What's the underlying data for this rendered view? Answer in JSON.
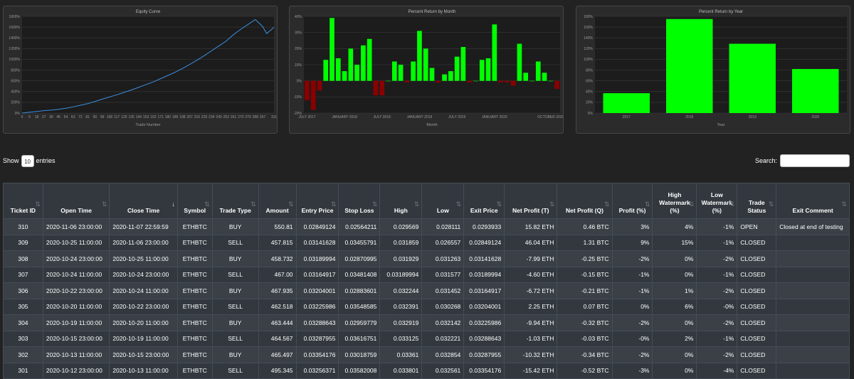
{
  "chart_data": [
    {
      "type": "line",
      "title": "Equity Curve",
      "xlabel": "Trade Number",
      "ylabel": "",
      "x_ticks": [
        "0",
        "9",
        "18",
        "27",
        "36",
        "45",
        "54",
        "63",
        "72",
        "81",
        "90",
        "99",
        "108",
        "117",
        "126",
        "135",
        "144",
        "153",
        "162",
        "171",
        "180",
        "189",
        "198",
        "207",
        "216",
        "225",
        "234",
        "243",
        "252",
        "261",
        "270",
        "279",
        "288",
        "297",
        "311"
      ],
      "y_ticks": [
        "0%",
        "200%",
        "400%",
        "600%",
        "800%",
        "1000%",
        "1200%",
        "1400%",
        "1600%",
        "1800%"
      ],
      "ylim": [
        0,
        1800
      ],
      "xlim": [
        0,
        311
      ],
      "x": [
        0,
        9,
        18,
        27,
        36,
        45,
        54,
        63,
        72,
        81,
        90,
        99,
        108,
        117,
        126,
        135,
        144,
        153,
        162,
        171,
        180,
        189,
        198,
        207,
        216,
        225,
        234,
        243,
        252,
        261,
        270,
        279,
        288,
        297,
        302,
        306,
        311
      ],
      "values": [
        0,
        15,
        30,
        45,
        55,
        70,
        90,
        115,
        145,
        175,
        215,
        260,
        300,
        340,
        385,
        430,
        480,
        530,
        580,
        640,
        700,
        760,
        830,
        905,
        985,
        1070,
        1160,
        1250,
        1340,
        1460,
        1560,
        1650,
        1740,
        1610,
        1480,
        1530,
        1600
      ],
      "color": "#3b8fe0"
    },
    {
      "type": "bar",
      "title": "Percent Return by Month",
      "xlabel": "Month",
      "ylabel": "",
      "x_ticks": [
        "JULY 2017",
        "JANUARY 2018",
        "JULY 2018",
        "JANUARY 2019",
        "JULY 2019",
        "JANUARY 2020",
        "OCTOBER 2020"
      ],
      "y_ticks": [
        "-20%",
        "-10%",
        "0%",
        "10%",
        "20%",
        "30%",
        "40%"
      ],
      "ylim": [
        -20,
        40
      ],
      "values": [
        -12,
        -18,
        -6,
        13,
        39,
        14,
        6,
        20,
        10,
        22,
        26,
        -9,
        -9,
        0,
        12,
        10,
        -1,
        12,
        31,
        20,
        8,
        -1,
        4,
        6,
        15,
        21,
        -1,
        0,
        13,
        14,
        35,
        -1,
        -1,
        -3,
        23,
        5,
        0,
        12,
        5,
        0,
        -5
      ],
      "positive_color": "#00ff00",
      "negative_color": "#8b0000"
    },
    {
      "type": "bar",
      "title": "Percent Return by Year",
      "xlabel": "Year",
      "ylabel": "",
      "categories": [
        "2017",
        "2018",
        "2019",
        "2020"
      ],
      "values": [
        37,
        175,
        129,
        82
      ],
      "y_ticks": [
        "0%",
        "20%",
        "40%",
        "60%",
        "80%",
        "100%",
        "120%",
        "140%",
        "160%",
        "180%"
      ],
      "ylim": [
        0,
        180
      ],
      "color": "#00ff00"
    }
  ],
  "controls": {
    "show_label": "Show",
    "length_value": "10",
    "entries_label": "entries",
    "search_label": "Search:"
  },
  "table": {
    "headers": [
      {
        "label": "Ticket ID",
        "sort": "none"
      },
      {
        "label": "Open Time",
        "sort": "none"
      },
      {
        "label": "Close Time",
        "sort": "desc"
      },
      {
        "label": "Symbol",
        "sort": "none"
      },
      {
        "label": "Trade Type",
        "sort": "none"
      },
      {
        "label": "Amount",
        "sort": "none"
      },
      {
        "label": "Entry Price",
        "sort": "none"
      },
      {
        "label": "Stop Loss",
        "sort": "none"
      },
      {
        "label": "High",
        "sort": "none"
      },
      {
        "label": "Low",
        "sort": "none"
      },
      {
        "label": "Exit Price",
        "sort": "none"
      },
      {
        "label": "Net Profit (T)",
        "sort": "none"
      },
      {
        "label": "Net Profit (Q)",
        "sort": "none"
      },
      {
        "label": "Profit (%)",
        "sort": "none"
      },
      {
        "label": "High Watermark (%)",
        "sort": "none"
      },
      {
        "label": "Low Watermark (%)",
        "sort": "none"
      },
      {
        "label": "Trade Status",
        "sort": "none"
      },
      {
        "label": "Exit Comment",
        "sort": "none"
      }
    ],
    "rows": [
      [
        "310",
        "2020-11-06 23:00:00",
        "2020-11-07 22:59:59",
        "ETHBTC",
        "BUY",
        "550.81",
        "0.02849124",
        "0.02564211",
        "0.029569",
        "0.028111",
        "0.0293933",
        "15.82 ETH",
        "0.46 BTC",
        "3%",
        "4%",
        "-1%",
        "OPEN",
        "Closed at end of testing"
      ],
      [
        "309",
        "2020-10-25 11:00:00",
        "2020-11-06 23:00:00",
        "ETHBTC",
        "SELL",
        "457.815",
        "0.03141628",
        "0.03455791",
        "0.031859",
        "0.026557",
        "0.02849124",
        "46.04 ETH",
        "1.31 BTC",
        "9%",
        "15%",
        "-1%",
        "CLOSED",
        ""
      ],
      [
        "308",
        "2020-10-24 23:00:00",
        "2020-10-25 11:00:00",
        "ETHBTC",
        "BUY",
        "458.732",
        "0.03189994",
        "0.02870995",
        "0.031929",
        "0.031263",
        "0.03141628",
        "-7.99 ETH",
        "-0.25 BTC",
        "-2%",
        "0%",
        "-2%",
        "CLOSED",
        ""
      ],
      [
        "307",
        "2020-10-24 11:00:00",
        "2020-10-24 23:00:00",
        "ETHBTC",
        "SELL",
        "467.00",
        "0.03164917",
        "0.03481408",
        "0.03189994",
        "0.031577",
        "0.03189994",
        "-4.60 ETH",
        "-0.15 BTC",
        "-1%",
        "0%",
        "-1%",
        "CLOSED",
        ""
      ],
      [
        "306",
        "2020-10-22 23:00:00",
        "2020-10-24 11:00:00",
        "ETHBTC",
        "BUY",
        "467.935",
        "0.03204001",
        "0.02883601",
        "0.032244",
        "0.031452",
        "0.03164917",
        "-6.72 ETH",
        "-0.21 BTC",
        "-1%",
        "1%",
        "-2%",
        "CLOSED",
        ""
      ],
      [
        "305",
        "2020-10-20 11:00:00",
        "2020-10-22 23:00:00",
        "ETHBTC",
        "SELL",
        "462.518",
        "0.03225986",
        "0.03548585",
        "0.032391",
        "0.030268",
        "0.03204001",
        "2.25 ETH",
        "0.07 BTC",
        "0%",
        "6%",
        "-0%",
        "CLOSED",
        ""
      ],
      [
        "304",
        "2020-10-19 11:00:00",
        "2020-10-20 11:00:00",
        "ETHBTC",
        "BUY",
        "463.444",
        "0.03288643",
        "0.02959779",
        "0.032919",
        "0.032142",
        "0.03225986",
        "-9.94 ETH",
        "-0.32 BTC",
        "-2%",
        "0%",
        "-2%",
        "CLOSED",
        ""
      ],
      [
        "303",
        "2020-10-15 23:00:00",
        "2020-10-19 11:00:00",
        "ETHBTC",
        "SELL",
        "464.567",
        "0.03287955",
        "0.03616751",
        "0.033125",
        "0.032221",
        "0.03288643",
        "-1.03 ETH",
        "-0.03 BTC",
        "-0%",
        "2%",
        "-1%",
        "CLOSED",
        ""
      ],
      [
        "302",
        "2020-10-13 11:00:00",
        "2020-10-15 23:00:00",
        "ETHBTC",
        "BUY",
        "465.497",
        "0.03354176",
        "0.03018759",
        "0.03361",
        "0.032854",
        "0.03287955",
        "-10.32 ETH",
        "-0.34 BTC",
        "-2%",
        "0%",
        "-2%",
        "CLOSED",
        ""
      ],
      [
        "301",
        "2020-10-12 23:00:00",
        "2020-10-13 11:00:00",
        "ETHBTC",
        "SELL",
        "495.345",
        "0.03256371",
        "0.03582008",
        "0.033801",
        "0.032561",
        "0.03354176",
        "-15.42 ETH",
        "-0.52 BTC",
        "-3%",
        "0%",
        "-4%",
        "CLOSED",
        ""
      ]
    ]
  }
}
